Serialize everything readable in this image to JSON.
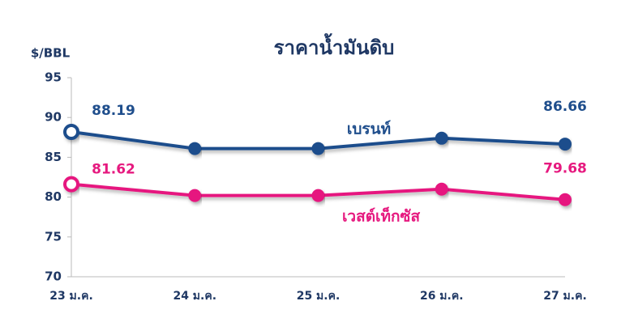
{
  "chart_data": {
    "type": "line",
    "title": "ราคาน้ำมันดิบ",
    "y_label": "$/BBL",
    "categories": [
      "23 ม.ค.",
      "24 ม.ค.",
      "25 ม.ค.",
      "26 ม.ค.",
      "27 ม.ค."
    ],
    "series": [
      {
        "name": "เบรนท์",
        "color": "#1f4e8c",
        "values": [
          88.19,
          86.1,
          86.1,
          87.4,
          86.66
        ],
        "value_labels": [
          "88.19",
          null,
          null,
          null,
          "86.66"
        ]
      },
      {
        "name": "เวสต์เท็กซัส",
        "color": "#e6197f",
        "values": [
          81.62,
          80.2,
          80.2,
          81.0,
          79.68
        ],
        "value_labels": [
          "81.62",
          null,
          null,
          null,
          "79.68"
        ]
      }
    ],
    "ylim": [
      70,
      95
    ],
    "yticks": [
      70,
      75,
      80,
      85,
      90,
      95
    ],
    "grid": false
  }
}
